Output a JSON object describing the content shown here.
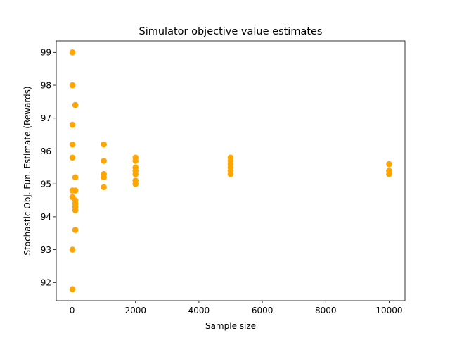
{
  "chart_data": {
    "type": "scatter",
    "title": "Simulator objective value estimates",
    "xlabel": "Sample size",
    "ylabel": "Stochastic Obj. Fun. Estimate (Rewards)",
    "xlim": [
      -500,
      10500
    ],
    "ylim": [
      91.45,
      99.35
    ],
    "xticks": [
      0,
      2000,
      4000,
      6000,
      8000,
      10000
    ],
    "yticks": [
      92,
      93,
      94,
      95,
      96,
      97,
      98,
      99
    ],
    "grid": false,
    "marker_color": "#ffa500",
    "series": [
      {
        "points": [
          {
            "x": 10,
            "y": 99.0
          },
          {
            "x": 10,
            "y": 98.0
          },
          {
            "x": 100,
            "y": 97.4
          },
          {
            "x": 10,
            "y": 96.8
          },
          {
            "x": 10,
            "y": 96.2
          },
          {
            "x": 10,
            "y": 95.8
          },
          {
            "x": 100,
            "y": 95.2
          },
          {
            "x": 10,
            "y": 94.8
          },
          {
            "x": 100,
            "y": 94.8
          },
          {
            "x": 10,
            "y": 94.6
          },
          {
            "x": 100,
            "y": 94.5
          },
          {
            "x": 100,
            "y": 94.4
          },
          {
            "x": 100,
            "y": 94.3
          },
          {
            "x": 100,
            "y": 94.2
          },
          {
            "x": 100,
            "y": 93.6
          },
          {
            "x": 10,
            "y": 93.0
          },
          {
            "x": 10,
            "y": 91.8
          },
          {
            "x": 1000,
            "y": 96.2
          },
          {
            "x": 1000,
            "y": 95.7
          },
          {
            "x": 1000,
            "y": 95.3
          },
          {
            "x": 1000,
            "y": 95.2
          },
          {
            "x": 1000,
            "y": 94.9
          },
          {
            "x": 2000,
            "y": 95.8
          },
          {
            "x": 2000,
            "y": 95.7
          },
          {
            "x": 2000,
            "y": 95.5
          },
          {
            "x": 2000,
            "y": 95.4
          },
          {
            "x": 2000,
            "y": 95.3
          },
          {
            "x": 2000,
            "y": 95.1
          },
          {
            "x": 2000,
            "y": 95.0
          },
          {
            "x": 5000,
            "y": 95.8
          },
          {
            "x": 5000,
            "y": 95.7
          },
          {
            "x": 5000,
            "y": 95.6
          },
          {
            "x": 5000,
            "y": 95.5
          },
          {
            "x": 5000,
            "y": 95.4
          },
          {
            "x": 5000,
            "y": 95.3
          },
          {
            "x": 10000,
            "y": 95.6
          },
          {
            "x": 10000,
            "y": 95.4
          },
          {
            "x": 10000,
            "y": 95.3
          }
        ]
      }
    ]
  }
}
